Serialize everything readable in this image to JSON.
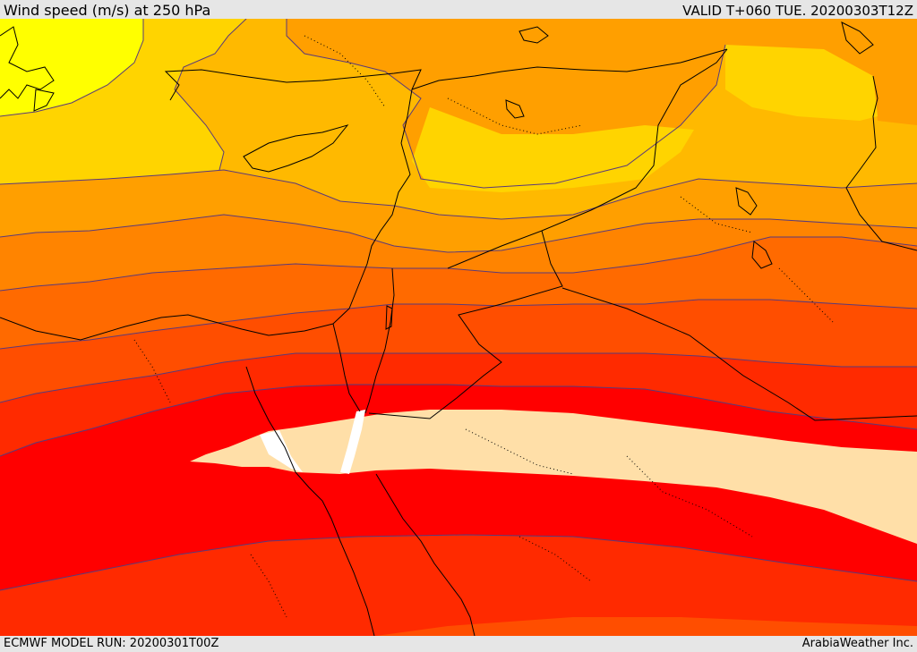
{
  "header": {
    "title": "Wind speed (m/s) at 250 hPa",
    "valid": "VALID T+060 TUE. 20200303T12Z"
  },
  "footer": {
    "model_run": "ECMWF MODEL RUN: 20200301T00Z",
    "brand": "ArabiaWeather Inc."
  },
  "map": {
    "field": "wind-speed-250hPa",
    "shading_colors": [
      "#ffff00",
      "#ffd400",
      "#ffb900",
      "#ff9f00",
      "#ff8400",
      "#ff6a00",
      "#ff4e00",
      "#ff2a00",
      "#ff0000",
      "#ffdfa8",
      "#ffffff"
    ],
    "contour_color": "#5a3a7a",
    "border_color": "#000000"
  }
}
